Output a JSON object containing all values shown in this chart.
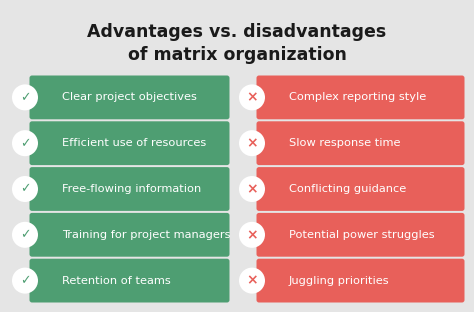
{
  "title_line1": "Advantages vs. disadvantages",
  "title_line2": "of matrix organization",
  "background_color": "#e5e5e5",
  "green_color": "#4e9e72",
  "red_color": "#e8605a",
  "text_color": "#1a1a1a",
  "advantages": [
    "Clear project objectives",
    "Efficient use of resources",
    "Free-flowing information",
    "Training for project managers",
    "Retention of teams"
  ],
  "disadvantages": [
    "Complex reporting style",
    "Slow response time",
    "Conflicting guidance",
    "Potential power struggles",
    "Juggling priorities"
  ],
  "title_fontsize": 12.5,
  "item_fontsize": 8.2,
  "fig_width": 4.74,
  "fig_height": 3.12,
  "dpi": 100
}
